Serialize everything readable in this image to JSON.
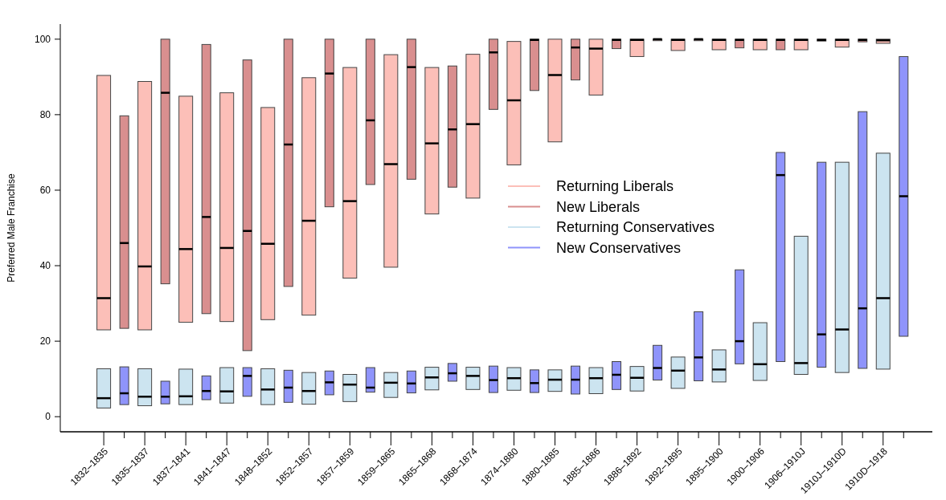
{
  "chart_data": {
    "type": "box",
    "ylabel": "Preferred Male Franchise",
    "categories": [
      "1832–1835",
      null,
      "1835–1837",
      null,
      "1837–1841",
      null,
      "1841–1847",
      null,
      "1848–1852",
      null,
      "1852–1857",
      null,
      "1857–1859",
      null,
      "1859–1865",
      null,
      "1865–1868",
      null,
      "1868–1874",
      null,
      "1874–1880",
      null,
      "1880–1885",
      null,
      "1885–1886",
      null,
      "1886–1892",
      null,
      "1892–1895",
      null,
      "1895–1900",
      null,
      "1900–1906",
      null,
      "1906–1910J",
      null,
      "1910J–1910D",
      null,
      "1910D–1918",
      null
    ],
    "ylim": [
      -4,
      104
    ],
    "yticks": [
      0,
      20,
      40,
      60,
      80,
      100
    ],
    "legend": "right",
    "series": [
      {
        "name": "Returning Liberals",
        "color": "#fcbfb8",
        "boxes": [
          {
            "low": 23.0,
            "q1": 23.0,
            "median": 31.4,
            "q3": 90.4,
            "high": 90.4
          },
          null,
          {
            "low": 23.0,
            "q1": 23.0,
            "median": 39.8,
            "q3": 88.8,
            "high": 88.8
          },
          null,
          {
            "low": 25.0,
            "q1": 25.0,
            "median": 44.4,
            "q3": 84.9,
            "high": 84.9
          },
          null,
          {
            "low": 25.2,
            "q1": 25.2,
            "median": 44.7,
            "q3": 85.8,
            "high": 85.8
          },
          null,
          {
            "low": 25.7,
            "q1": 25.7,
            "median": 45.8,
            "q3": 81.9,
            "high": 81.9
          },
          null,
          {
            "low": 26.9,
            "q1": 26.9,
            "median": 51.9,
            "q3": 89.8,
            "high": 89.8
          },
          null,
          {
            "low": 36.7,
            "q1": 36.7,
            "median": 57.1,
            "q3": 92.5,
            "high": 92.5
          },
          null,
          {
            "low": 39.6,
            "q1": 39.6,
            "median": 66.9,
            "q3": 95.9,
            "high": 95.9
          },
          null,
          {
            "low": 53.7,
            "q1": 53.7,
            "median": 72.4,
            "q3": 92.5,
            "high": 92.5
          },
          null,
          {
            "low": 57.9,
            "q1": 57.9,
            "median": 77.5,
            "q3": 96.0,
            "high": 96.0
          },
          null,
          {
            "low": 66.7,
            "q1": 66.7,
            "median": 83.8,
            "q3": 99.4,
            "high": 99.4
          },
          null,
          {
            "low": 72.8,
            "q1": 72.8,
            "median": 90.5,
            "q3": 100,
            "high": 100
          },
          null,
          {
            "low": 85.2,
            "q1": 85.2,
            "median": 97.5,
            "q3": 100,
            "high": 100
          },
          null,
          {
            "low": 95.4,
            "q1": 95.4,
            "median": 99.8,
            "q3": 100,
            "high": 100
          },
          null,
          {
            "low": 97.0,
            "q1": 97.0,
            "median": 99.8,
            "q3": 100,
            "high": 100
          },
          null,
          {
            "low": 97.2,
            "q1": 97.2,
            "median": 99.8,
            "q3": 100,
            "high": 100
          },
          null,
          {
            "low": 97.2,
            "q1": 97.2,
            "median": 99.8,
            "q3": 100,
            "high": 100
          },
          null,
          {
            "low": 97.2,
            "q1": 97.2,
            "median": 99.8,
            "q3": 100,
            "high": 100
          },
          null,
          {
            "low": 97.9,
            "q1": 97.9,
            "median": 99.8,
            "q3": 100,
            "high": 100
          },
          null,
          {
            "low": 98.9,
            "q1": 98.9,
            "median": 99.7,
            "q3": 100,
            "high": 100
          },
          null
        ]
      },
      {
        "name": "New Liberals",
        "color": "#d98f8f",
        "boxes": [
          null,
          {
            "low": 23.4,
            "q1": 23.4,
            "median": 46.0,
            "q3": 79.7,
            "high": 79.7
          },
          null,
          {
            "low": 35.2,
            "q1": 35.2,
            "median": 85.8,
            "q3": 100,
            "high": 100
          },
          null,
          {
            "low": 27.3,
            "q1": 27.3,
            "median": 52.9,
            "q3": 98.6,
            "high": 98.6
          },
          null,
          {
            "low": 17.5,
            "q1": 17.5,
            "median": 49.2,
            "q3": 94.5,
            "high": 94.5
          },
          null,
          {
            "low": 34.5,
            "q1": 34.5,
            "median": 72.1,
            "q3": 100,
            "high": 100
          },
          null,
          {
            "low": 55.6,
            "q1": 55.6,
            "median": 90.9,
            "q3": 100,
            "high": 100
          },
          null,
          {
            "low": 61.5,
            "q1": 61.5,
            "median": 78.5,
            "q3": 100,
            "high": 100
          },
          null,
          {
            "low": 62.9,
            "q1": 62.9,
            "median": 92.6,
            "q3": 100,
            "high": 100
          },
          null,
          {
            "low": 60.8,
            "q1": 60.8,
            "median": 76.1,
            "q3": 92.9,
            "high": 92.9
          },
          null,
          {
            "low": 81.4,
            "q1": 81.4,
            "median": 96.5,
            "q3": 100,
            "high": 100
          },
          null,
          {
            "low": 86.4,
            "q1": 86.4,
            "median": 99.8,
            "q3": 100,
            "high": 100
          },
          null,
          {
            "low": 89.2,
            "q1": 89.2,
            "median": 97.8,
            "q3": 100,
            "high": 100
          },
          null,
          {
            "low": 97.5,
            "q1": 97.5,
            "median": 99.8,
            "q3": 100,
            "high": 100
          },
          null,
          {
            "low": 99.6,
            "q1": 99.6,
            "median": 100,
            "q3": 100,
            "high": 100
          },
          null,
          {
            "low": 99.6,
            "q1": 99.6,
            "median": 100,
            "q3": 100,
            "high": 100
          },
          null,
          {
            "low": 97.7,
            "q1": 97.7,
            "median": 99.8,
            "q3": 100,
            "high": 100
          },
          null,
          {
            "low": 97.2,
            "q1": 97.2,
            "median": 99.8,
            "q3": 100,
            "high": 100
          },
          null,
          {
            "low": 99.5,
            "q1": 99.5,
            "median": 99.8,
            "q3": 100,
            "high": 100
          },
          null,
          {
            "low": 99.3,
            "q1": 99.3,
            "median": 99.8,
            "q3": 100,
            "high": 100
          },
          null,
          null
        ]
      },
      {
        "name": "Returning Conservatives",
        "color": "#cce4f0",
        "boxes": [
          {
            "low": 2.3,
            "q1": 2.3,
            "median": 4.9,
            "q3": 12.7,
            "high": 12.7
          },
          null,
          {
            "low": 2.9,
            "q1": 2.9,
            "median": 5.3,
            "q3": 12.7,
            "high": 12.7
          },
          null,
          {
            "low": 3.2,
            "q1": 3.2,
            "median": 5.4,
            "q3": 12.6,
            "high": 12.6
          },
          null,
          {
            "low": 3.6,
            "q1": 3.6,
            "median": 6.7,
            "q3": 13.0,
            "high": 13.0
          },
          null,
          {
            "low": 3.2,
            "q1": 3.2,
            "median": 7.2,
            "q3": 12.7,
            "high": 12.7
          },
          null,
          {
            "low": 3.3,
            "q1": 3.3,
            "median": 6.8,
            "q3": 11.7,
            "high": 11.7
          },
          null,
          {
            "low": 4.0,
            "q1": 4.0,
            "median": 8.5,
            "q3": 11.2,
            "high": 11.2
          },
          null,
          {
            "low": 5.1,
            "q1": 5.1,
            "median": 9.0,
            "q3": 11.7,
            "high": 11.7
          },
          null,
          {
            "low": 7.1,
            "q1": 7.1,
            "median": 10.4,
            "q3": 13.1,
            "high": 13.1
          },
          null,
          {
            "low": 7.2,
            "q1": 7.2,
            "median": 10.8,
            "q3": 13.1,
            "high": 13.1
          },
          null,
          {
            "low": 7.0,
            "q1": 7.0,
            "median": 10.2,
            "q3": 13.0,
            "high": 13.0
          },
          null,
          {
            "low": 6.7,
            "q1": 6.7,
            "median": 9.8,
            "q3": 12.4,
            "high": 12.4
          },
          null,
          {
            "low": 6.1,
            "q1": 6.1,
            "median": 10.2,
            "q3": 13.0,
            "high": 13.0
          },
          null,
          {
            "low": 6.8,
            "q1": 6.8,
            "median": 10.3,
            "q3": 13.3,
            "high": 13.3
          },
          null,
          {
            "low": 7.5,
            "q1": 7.5,
            "median": 12.2,
            "q3": 15.8,
            "high": 15.8
          },
          null,
          {
            "low": 9.2,
            "q1": 9.2,
            "median": 12.5,
            "q3": 17.7,
            "high": 17.7
          },
          null,
          {
            "low": 9.6,
            "q1": 9.6,
            "median": 13.9,
            "q3": 24.9,
            "high": 24.9
          },
          null,
          {
            "low": 11.2,
            "q1": 11.2,
            "median": 14.2,
            "q3": 47.8,
            "high": 47.8
          },
          null,
          {
            "low": 11.7,
            "q1": 11.7,
            "median": 23.1,
            "q3": 67.4,
            "high": 67.4
          },
          null,
          {
            "low": 12.6,
            "q1": 12.6,
            "median": 31.4,
            "q3": 69.8,
            "high": 69.8
          },
          null
        ]
      },
      {
        "name": "New Conservatives",
        "color": "#8f94fb",
        "boxes": [
          null,
          {
            "low": 3.2,
            "q1": 3.2,
            "median": 6.2,
            "q3": 13.2,
            "high": 13.2
          },
          null,
          {
            "low": 3.4,
            "q1": 3.4,
            "median": 5.3,
            "q3": 9.4,
            "high": 9.4
          },
          null,
          {
            "low": 4.5,
            "q1": 4.5,
            "median": 6.8,
            "q3": 10.8,
            "high": 10.8
          },
          null,
          {
            "low": 5.4,
            "q1": 5.4,
            "median": 10.8,
            "q3": 13.0,
            "high": 13.0
          },
          null,
          {
            "low": 3.8,
            "q1": 3.8,
            "median": 7.7,
            "q3": 12.3,
            "high": 12.3
          },
          null,
          {
            "low": 5.8,
            "q1": 5.8,
            "median": 9.1,
            "q3": 12.1,
            "high": 12.1
          },
          null,
          {
            "low": 6.5,
            "q1": 6.5,
            "median": 7.7,
            "q3": 13.0,
            "high": 13.0
          },
          null,
          {
            "low": 6.3,
            "q1": 6.3,
            "median": 8.8,
            "q3": 12.1,
            "high": 12.1
          },
          null,
          {
            "low": 9.4,
            "q1": 9.4,
            "median": 11.5,
            "q3": 14.1,
            "high": 14.1
          },
          null,
          {
            "low": 6.4,
            "q1": 6.4,
            "median": 9.7,
            "q3": 13.4,
            "high": 13.4
          },
          null,
          {
            "low": 6.4,
            "q1": 6.4,
            "median": 8.9,
            "q3": 12.4,
            "high": 12.4
          },
          null,
          {
            "low": 6.0,
            "q1": 6.0,
            "median": 9.8,
            "q3": 13.4,
            "high": 13.4
          },
          null,
          {
            "low": 7.2,
            "q1": 7.2,
            "median": 11.1,
            "q3": 14.6,
            "high": 14.6
          },
          null,
          {
            "low": 9.7,
            "q1": 9.7,
            "median": 12.9,
            "q3": 18.9,
            "high": 18.9
          },
          null,
          {
            "low": 9.5,
            "q1": 9.5,
            "median": 15.7,
            "q3": 27.8,
            "high": 27.8
          },
          null,
          {
            "low": 14.0,
            "q1": 14.0,
            "median": 20.0,
            "q3": 38.9,
            "high": 38.9
          },
          null,
          {
            "low": 14.6,
            "q1": 14.6,
            "median": 64.0,
            "q3": 70.0,
            "high": 70.0
          },
          null,
          {
            "low": 13.1,
            "q1": 13.1,
            "median": 21.8,
            "q3": 67.4,
            "high": 67.4
          },
          null,
          {
            "low": 12.8,
            "q1": 12.8,
            "median": 28.7,
            "q3": 80.8,
            "high": 80.8
          },
          null,
          {
            "low": 21.3,
            "q1": 21.3,
            "median": 58.4,
            "q3": 95.4,
            "high": 95.4
          }
        ]
      }
    ]
  }
}
